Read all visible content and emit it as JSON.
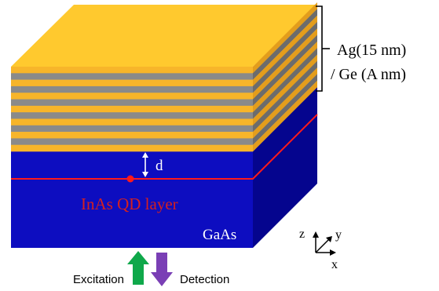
{
  "labels": {
    "multilayer_line1": "Ag(15 nm)",
    "multilayer_line2": "/ Ge (A nm)",
    "spacer": "d",
    "qd_layer": "InAs QD layer",
    "substrate": "GaAs",
    "excitation": "Excitation",
    "detection": "Detection"
  },
  "axes": {
    "z": "z",
    "y": "y",
    "x": "x"
  },
  "colors": {
    "silver_front": "#F7B52A",
    "silver_top": "#FFC92E",
    "silver_side": "#E39D1C",
    "germanium_front": "#8A8A8A",
    "germanium_side": "#6C6C6C",
    "gaas_front": "#0D0DC0",
    "gaas_side": "#05058E",
    "qd_line": "#FF1A1A",
    "qd_text": "#D42020",
    "excitation_arrow": "#0FA84A",
    "detection_arrow": "#7A3FB5"
  }
}
